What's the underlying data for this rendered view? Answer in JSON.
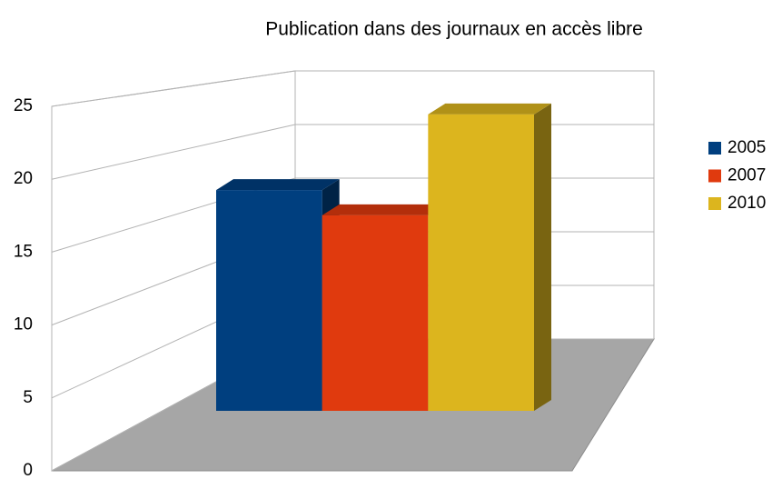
{
  "chart_data": {
    "type": "bar",
    "title": "Publication dans des journaux en accès libre",
    "series": [
      {
        "name": "2005",
        "color": "#003f7f",
        "values": [
          17.5
        ]
      },
      {
        "name": "2007",
        "color": "#e03a0e",
        "values": [
          15.5
        ]
      },
      {
        "name": "2010",
        "color": "#dcb51e",
        "values": [
          23.5
        ]
      }
    ],
    "ylim": [
      0,
      25
    ],
    "yticks": [
      0,
      5,
      10,
      15,
      20,
      25
    ],
    "grid": true
  }
}
